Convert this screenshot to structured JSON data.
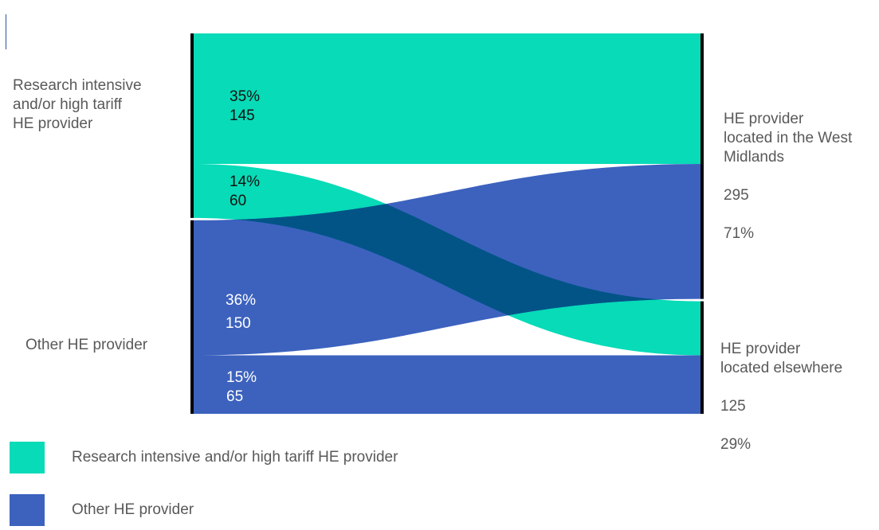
{
  "colors": {
    "research": "#07dbb7",
    "other": "#3c62be",
    "overlap": "#025487",
    "node_bar": "#000000"
  },
  "chart_data": {
    "type": "sankey",
    "title": "",
    "sources": [
      {
        "id": "research",
        "label": "Research intensive\nand/or high tariff\nHE provider"
      },
      {
        "id": "other",
        "label": "Other HE provider"
      }
    ],
    "targets": [
      {
        "id": "wm",
        "label": "HE provider\nlocated in the West\nMidlands",
        "value_label": "295",
        "percent_label": "71%"
      },
      {
        "id": "else",
        "label": "HE provider\nlocated elsewhere",
        "value_label": "125",
        "percent_label": "29%"
      }
    ],
    "flows": [
      {
        "source": "research",
        "target": "wm",
        "value": 145,
        "percent": "35%",
        "value_label": "145"
      },
      {
        "source": "research",
        "target": "else",
        "value": 60,
        "percent": "14%",
        "value_label": "60"
      },
      {
        "source": "other",
        "target": "wm",
        "value": 150,
        "percent": "36%",
        "value_label": "150"
      },
      {
        "source": "other",
        "target": "else",
        "value": 65,
        "percent": "15%",
        "value_label": "65"
      }
    ],
    "legend": [
      {
        "label": "Research intensive and/or high tariff HE provider",
        "series": "research"
      },
      {
        "label": "Other HE provider",
        "series": "other"
      }
    ],
    "legend_position": "bottom-left"
  }
}
